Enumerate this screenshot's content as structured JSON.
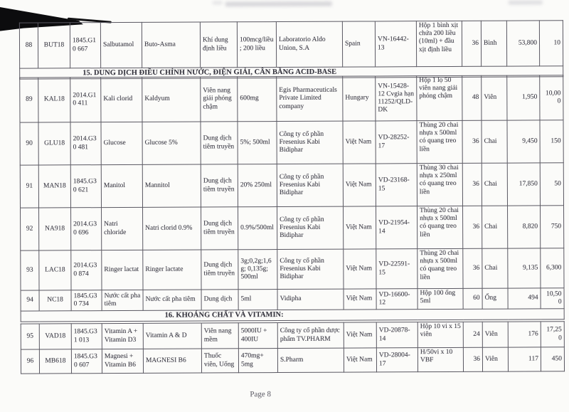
{
  "sections": {
    "s15": "15. DUNG DỊCH ĐIỀU CHỈNH NƯỚC, ĐIỆN GIẢI, CÂN BẰNG ACID-BASE",
    "s16": "16. KHOÁNG CHẤT VÀ VITAMIN:"
  },
  "tableA": {
    "rows": [
      [
        "88",
        "BUT18",
        "1845.G10 667",
        "Salbutamol",
        "Buto-Asma",
        "Khí dung định liều",
        "100mcg/liều; 200 liều",
        "Laboratorio Aldo Union, S.A",
        "Spain",
        "VN-16442-13",
        "Hộp 1 bình xịt chứa 200 liều (10ml) + đầu xịt định liều",
        "36",
        "Bình",
        "53,800",
        "10"
      ]
    ]
  },
  "tableB": {
    "rows": [
      [
        "89",
        "KAL18",
        "2014.G10 411",
        "Kali clorid",
        "Kaldyum",
        "Viên nang giải phóng chậm",
        "600mg",
        "Egis Pharmaceuticals Private Limited company",
        "Hungary",
        "VN-15428-12 Cvgia hạn 11252/QLD-DK",
        "Hộp 1 lọ 50 viên nang giải phóng chậm",
        "48",
        "Viên",
        "1,950",
        "10,000"
      ],
      [
        "90",
        "GLU18",
        "2014.G30 481",
        "Glucose",
        "Glucose 5%",
        "Dung dịch tiêm truyền",
        "5%; 500ml",
        "Công ty cổ phần Fresenius Kabi Bidiphar",
        "Việt Nam",
        "VD-28252-17",
        "Thùng 20 chai nhựa x 500ml có quang treo liền",
        "36",
        "Chai",
        "9,450",
        "150"
      ],
      [
        "91",
        "MAN18",
        "1845.G30 621",
        "Manitol",
        "Mannitol",
        "Dung dịch tiêm truyền",
        "20% 250ml",
        "Công ty cổ phần Fresenius Kabi Bidiphar",
        "Việt Nam",
        "VD-23168-15",
        "Thùng 30 chai nhựa x 250ml có quang treo liền",
        "36",
        "Chai",
        "17,850",
        "50"
      ],
      [
        "92",
        "NA918",
        "2014.G30 696",
        "Natri chloride",
        "Natri clorid 0.9%",
        "Dung dịch tiêm truyền",
        "0.9%/500ml",
        "Công ty cổ phần Fresenius Kabi Bidiphar",
        "Việt Nam",
        "VD-21954-14",
        "Thùng 20 chai nhựa x 500ml có quang treo liền",
        "36",
        "Chai",
        "8,820",
        "750"
      ],
      [
        "93",
        "LAC18",
        "2014.G30 874",
        "Ringer lactat",
        "Ringer lactate",
        "Dung dịch tiêm truyền",
        "3g;0,2g;1,6g; 0,135g; 500ml",
        "Công ty cổ phần Fresenius Kabi Bidiphar",
        "Việt Nam",
        "VD-22591-15",
        "Thùng 20 chai nhựa x 500ml có quang treo liền",
        "36",
        "Chai",
        "9,135",
        "6,300"
      ],
      [
        "94",
        "NC18",
        "1845.G30 734",
        "Nước cất pha tiêm",
        "Nước cất pha tiêm",
        "Dung dịch",
        "5ml",
        "Vidipha",
        "Việt Nam",
        "VD-16600-12",
        "Hộp 100 ống 5ml",
        "60",
        "Ống",
        "494",
        "10,500"
      ]
    ]
  },
  "tableC": {
    "rows": [
      [
        "95",
        "VAD18",
        "1845.G31 013",
        "Vitamin A + Vitamin D3",
        "Vitamin A & D",
        "Viên nang mềm",
        "5000IU + 400IU",
        "Công ty cổ phần dược phẩm TV.PHARM",
        "Việt Nam",
        "VD-20878-14",
        "Hộp 10 vi x 15 viên",
        "24",
        "Viên",
        "176",
        "17,250"
      ],
      [
        "96",
        "MB618",
        "1845.G30 607",
        "Magnesi + Vitamin B6",
        "MAGNESI B6",
        "Thuốc viên, Uống",
        "470mg+ 5mg",
        "S.Pharm",
        "Việt Nam",
        "VD-28004-17",
        "H/50vi x 10 VBF",
        "36",
        "Viên",
        "117",
        "450"
      ]
    ]
  },
  "footer": {
    "page_label": "Page 8"
  }
}
